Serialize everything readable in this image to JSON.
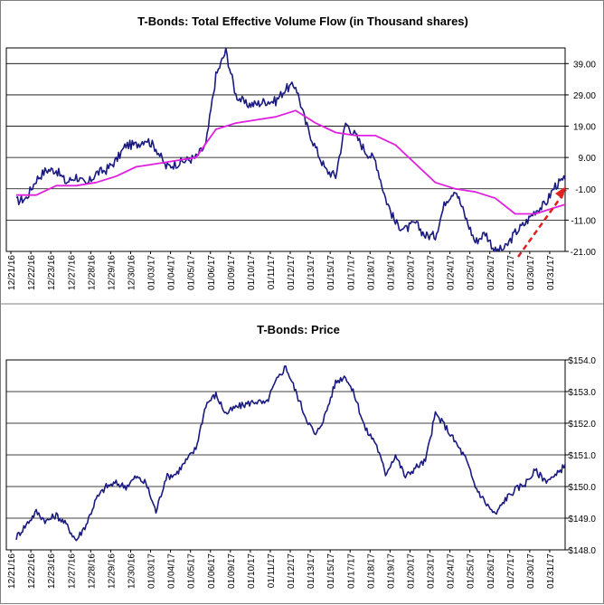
{
  "chart_data": [
    {
      "type": "line",
      "title": "T-Bonds: Total Effective Volume Flow (in Thousand shares)",
      "ylim": [
        -21,
        44
      ],
      "yticks": [
        "39.00",
        "29.00",
        "19.00",
        "9.00",
        "-1.00",
        "-11.00",
        "-21.00"
      ],
      "ytick_values": [
        39,
        29,
        19,
        9,
        -1,
        -11,
        -21
      ],
      "categories": [
        "12/21/16",
        "12/22/16",
        "12/23/16",
        "12/27/16",
        "12/28/16",
        "12/29/16",
        "12/30/16",
        "01/03/17",
        "01/04/17",
        "01/05/17",
        "01/06/17",
        "01/09/17",
        "01/10/17",
        "01/11/17",
        "01/12/17",
        "01/13/17",
        "01/15/17",
        "01/17/17",
        "01/18/17",
        "01/19/17",
        "01/20/17",
        "01/23/17",
        "01/24/17",
        "01/25/17",
        "01/26/17",
        "01/27/17",
        "01/30/17",
        "01/31/17"
      ],
      "grid": true,
      "series": [
        {
          "color": "#1a1a80",
          "x": [
            0,
            0.5,
            1,
            1.5,
            2,
            2.5,
            3,
            3.5,
            4,
            4.5,
            5,
            5.5,
            6,
            6.5,
            7,
            7.5,
            8,
            8.5,
            9,
            9.5,
            10,
            10.5,
            11,
            11.5,
            12,
            12.5,
            13,
            13.5,
            14,
            14.5,
            15,
            15.5,
            16,
            16.5,
            17,
            17.5,
            18,
            18.5,
            19,
            19.5,
            20,
            20.5,
            21,
            21.5,
            22,
            22.5,
            23,
            23.5,
            24,
            24.5,
            25,
            25.5,
            26,
            26.5,
            27,
            27.5
          ],
          "y": [
            -5,
            -4,
            2,
            5,
            5,
            1,
            3,
            0,
            4,
            5,
            8,
            13,
            13,
            15,
            12,
            6,
            7,
            8,
            9,
            13,
            35,
            43,
            29,
            26,
            26,
            27,
            27,
            31,
            32,
            20,
            12,
            5,
            3,
            20,
            16,
            11,
            8,
            -4,
            -12,
            -14,
            -12,
            -16,
            -16,
            -5,
            -1,
            -10,
            -18,
            -15,
            -21,
            -20,
            -15,
            -12,
            -8,
            -6,
            0,
            2
          ]
        },
        {
          "color": "#e020e0",
          "x": [
            0,
            1,
            2,
            3,
            4,
            5,
            6,
            7,
            8,
            9,
            10,
            11,
            12,
            13,
            14,
            15,
            16,
            17,
            18,
            19,
            20,
            21,
            22,
            23,
            24,
            25,
            26,
            27,
            27.5
          ],
          "y": [
            -3,
            -3,
            0,
            0,
            1,
            3,
            6,
            7,
            8,
            9,
            18,
            20,
            21,
            22,
            24,
            20,
            17,
            16,
            16,
            13,
            7,
            1,
            -1,
            -2,
            -4,
            -9,
            -9,
            -7,
            -6
          ]
        }
      ]
    },
    {
      "type": "line",
      "title": "T-Bonds: Price",
      "ylim": [
        148,
        154
      ],
      "yticks": [
        "$154.0",
        "$153.0",
        "$152.0",
        "$151.0",
        "$150.0",
        "$149.0",
        "$148.0"
      ],
      "ytick_values": [
        154,
        153,
        152,
        151,
        150,
        149,
        148
      ],
      "categories": [
        "12/21/16",
        "12/22/16",
        "12/23/16",
        "12/27/16",
        "12/28/16",
        "12/29/16",
        "12/30/16",
        "01/03/17",
        "01/04/17",
        "01/05/17",
        "01/06/17",
        "01/09/17",
        "01/10/17",
        "01/11/17",
        "01/12/17",
        "01/13/17",
        "01/15/17",
        "01/17/17",
        "01/18/17",
        "01/19/17",
        "01/20/17",
        "01/23/17",
        "01/24/17",
        "01/25/17",
        "01/26/17",
        "01/27/17",
        "01/30/17",
        "01/31/17"
      ],
      "grid": true,
      "series": [
        {
          "color": "#1a1a80",
          "x": [
            0,
            0.5,
            1,
            1.5,
            2,
            2.5,
            3,
            3.5,
            4,
            4.5,
            5,
            5.5,
            6,
            6.5,
            7,
            7.5,
            8,
            8.5,
            9,
            9.5,
            10,
            10.5,
            11,
            11.5,
            12,
            12.5,
            13,
            13.5,
            14,
            14.5,
            15,
            15.5,
            16,
            16.5,
            17,
            17.5,
            18,
            18.5,
            19,
            19.5,
            20,
            20.5,
            21,
            21.5,
            22,
            22.5,
            23,
            23.5,
            24,
            24.5,
            25,
            25.5,
            26,
            26.5,
            27,
            27.5
          ],
          "y": [
            148.4,
            148.8,
            149.2,
            148.9,
            149.1,
            148.8,
            148.3,
            148.8,
            149.6,
            150.0,
            150.1,
            150.0,
            150.3,
            150.1,
            149.2,
            150.3,
            150.4,
            150.8,
            151.2,
            152.6,
            152.9,
            152.3,
            152.5,
            152.6,
            152.7,
            152.6,
            153.3,
            153.8,
            153.0,
            152.2,
            151.6,
            152.3,
            153.3,
            153.5,
            152.8,
            151.8,
            151.4,
            150.4,
            151.0,
            150.3,
            150.6,
            150.8,
            152.3,
            151.9,
            151.4,
            150.9,
            150.0,
            149.5,
            149.1,
            149.6,
            149.9,
            150.1,
            150.5,
            150.2,
            150.3,
            150.7
          ]
        }
      ]
    }
  ]
}
